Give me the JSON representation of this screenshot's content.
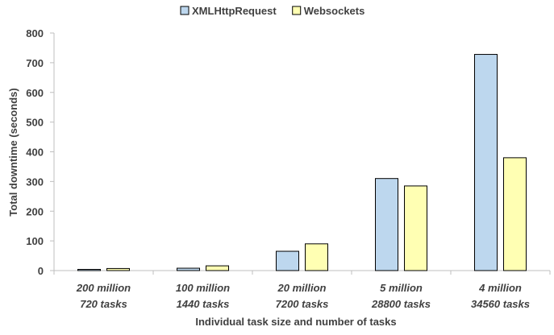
{
  "chart_data": {
    "type": "bar",
    "title": "",
    "xlabel": "Individual task size and number of tasks",
    "ylabel": "Total downtime (seconds)",
    "ylim": [
      0,
      800
    ],
    "yticks": [
      0,
      100,
      200,
      300,
      400,
      500,
      600,
      700,
      800
    ],
    "grid": false,
    "legend_position": "top",
    "categories": [
      [
        "200 million",
        "720 tasks"
      ],
      [
        "100 million",
        "1440 tasks"
      ],
      [
        "20 million",
        "7200 tasks"
      ],
      [
        "5 million",
        "28800 tasks"
      ],
      [
        "4 million",
        "34560 tasks"
      ]
    ],
    "series": [
      {
        "name": "XMLHttpRequest",
        "color": "#BDD7EE",
        "values": [
          4,
          8,
          65,
          310,
          728
        ]
      },
      {
        "name": "Websockets",
        "color": "#FFFFB3",
        "values": [
          7,
          16,
          90,
          285,
          380
        ]
      }
    ]
  }
}
